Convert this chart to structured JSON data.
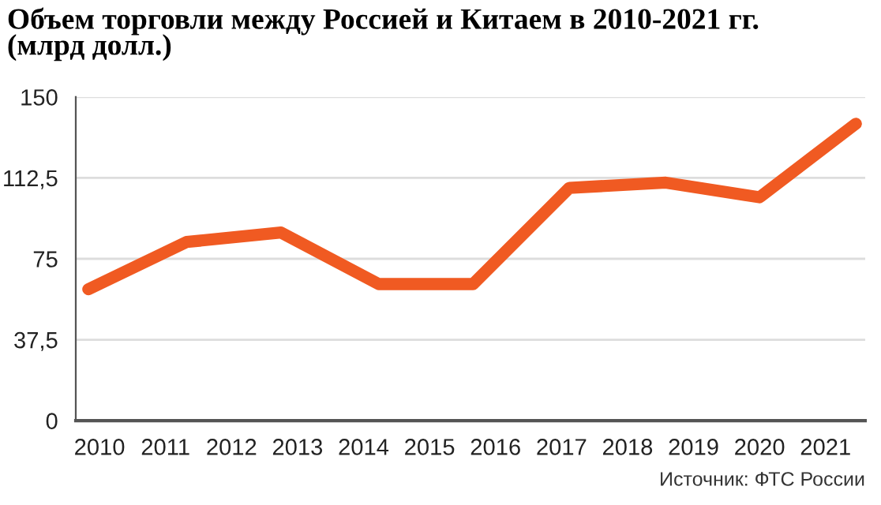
{
  "chart_data": {
    "type": "line",
    "title": "Объем торговли между Россией и Китаем в 2010-2021 гг.\n(млрд долл.)",
    "annotations": [
      "Источник: ФТС России"
    ],
    "series": [
      {
        "color": "#f05a22",
        "x": [
          2009.83,
          2011.32,
          2012.75,
          2014.23,
          2015.66,
          2017.12,
          2018.58,
          2020.0,
          2021.46
        ],
        "values": [
          60.9,
          82.8,
          87.2,
          63.3,
          63.3,
          107.9,
          110.3,
          103.5,
          137.6
        ]
      }
    ],
    "xlim": [
      2009.64,
      2021.6
    ],
    "xticks": [
      2010,
      2011,
      2012,
      2013,
      2014,
      2015,
      2016,
      2017,
      2018,
      2019,
      2020,
      2021
    ],
    "ylim": [
      0,
      150
    ],
    "yticks": [
      0,
      {
        "value": 37.5,
        "label": "37,5"
      },
      75,
      {
        "value": 112.5,
        "label": "112,5"
      },
      150
    ],
    "grid": "y",
    "marker": "none",
    "line_style": "solid"
  }
}
